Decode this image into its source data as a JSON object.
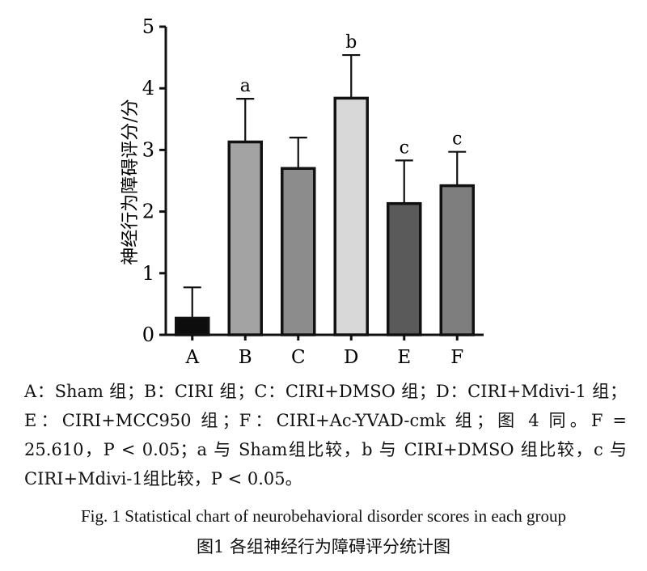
{
  "chart_data": {
    "type": "bar",
    "categories": [
      "A",
      "B",
      "C",
      "D",
      "E",
      "F"
    ],
    "values": [
      0.27,
      3.13,
      2.7,
      3.84,
      2.13,
      2.42
    ],
    "errors": [
      0.5,
      0.7,
      0.5,
      0.7,
      0.7,
      0.55
    ],
    "annotations": [
      "",
      "a",
      "",
      "b",
      "c",
      "c"
    ],
    "bar_colors": [
      "#0d0d0d",
      "#a3a3a3",
      "#8c8c8c",
      "#d8d8d8",
      "#5a5a5a",
      "#7e7e7e"
    ],
    "ylabel": "神经行为障碍评分/分",
    "xlabel": "",
    "ylim": [
      0,
      5
    ],
    "yticks": [
      "0",
      "1",
      "2",
      "3",
      "4",
      "5"
    ],
    "grid": false
  },
  "caption": {
    "note": "A：Sham 组；B：CIRI 组；C：CIRI+DMSO 组；D：CIRI+Mdivi-1 组；E：CIRI+MCC950 组；F：CIRI+Ac-YVAD-cmk 组；图 4 同。F = 25.610，P < 0.05；a 与 Sham组比较，b 与 CIRI+DMSO 组比较，c 与 CIRI+Mdivi-1组比较，P < 0.05。",
    "fig_en": "Fig. 1    Statistical chart of neurobehavioral disorder scores in each group",
    "fig_zh": "图1    各组神经行为障碍评分统计图"
  }
}
